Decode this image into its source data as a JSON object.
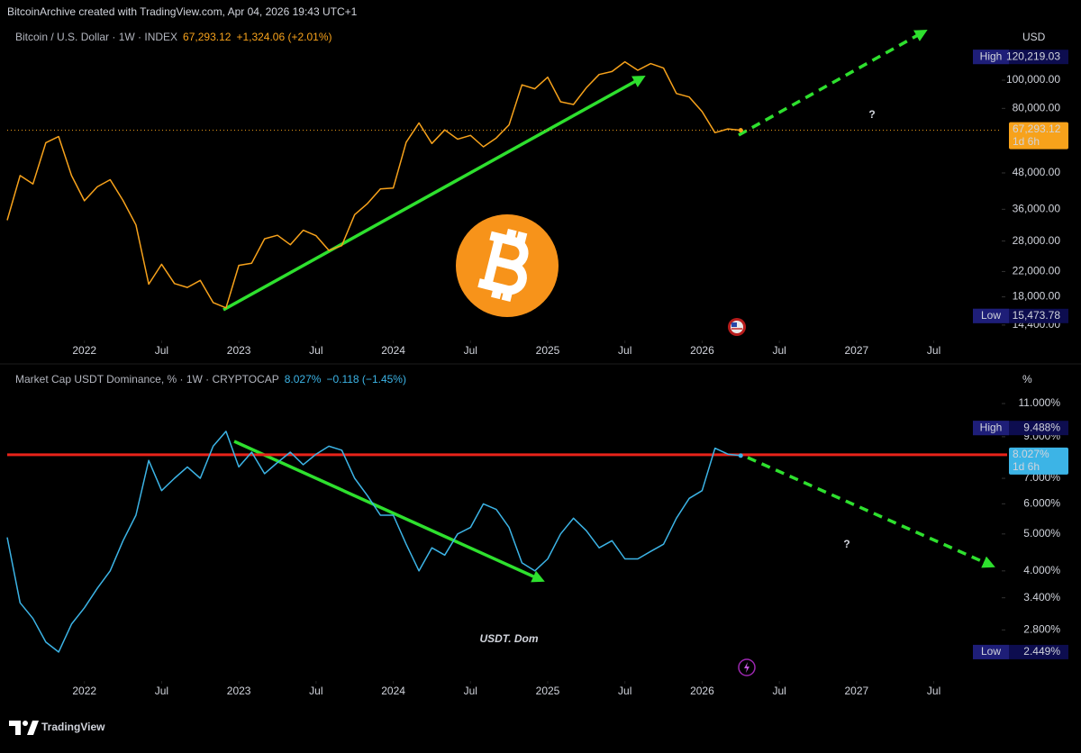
{
  "header": "BitcoinArchive created with TradingView.com, Apr 04, 2026 19:43 UTC+1",
  "brand": "TradingView",
  "chart_data": [
    {
      "type": "line",
      "log_scale": true,
      "unit": "USD",
      "quote": "67,293.12",
      "change": "+1,324.06 (+2.01%)",
      "countdown": "1d 6h",
      "price_line": true,
      "high": {
        "title": "High",
        "value": 120219.03,
        "label": "120,219.03"
      },
      "low": {
        "title": "Low",
        "value": 15473.78,
        "label": "15,473.78"
      },
      "annotations": [
        "?"
      ],
      "x": [
        "2021-07",
        "2021-08",
        "2021-09",
        "2021-10",
        "2021-11",
        "2021-12",
        "2022-01",
        "2022-02",
        "2022-03",
        "2022-04",
        "2022-05",
        "2022-06",
        "2022-07",
        "2022-08",
        "2022-09",
        "2022-10",
        "2022-11",
        "2022-12",
        "2023-01",
        "2023-02",
        "2023-03",
        "2023-04",
        "2023-05",
        "2023-06",
        "2023-07",
        "2023-08",
        "2023-09",
        "2023-10",
        "2023-11",
        "2023-12",
        "2024-01",
        "2024-02",
        "2024-03",
        "2024-04",
        "2024-05",
        "2024-06",
        "2024-07",
        "2024-08",
        "2024-09",
        "2024-10",
        "2024-11",
        "2024-12",
        "2025-01",
        "2025-02",
        "2025-03",
        "2025-04",
        "2025-05",
        "2025-06",
        "2025-07",
        "2025-08",
        "2025-09",
        "2025-10",
        "2025-11",
        "2025-12",
        "2026-01",
        "2026-02",
        "2026-03",
        "2026-04"
      ],
      "series": [
        {
          "name": "Bitcoin / U.S. Dollar · 1W · INDEX",
          "color": "#f7a21b",
          "values": [
            33000,
            47000,
            44000,
            61000,
            64000,
            47000,
            38500,
            43000,
            45500,
            38600,
            31800,
            19900,
            23300,
            20000,
            19400,
            20500,
            17200,
            16500,
            23100,
            23500,
            28500,
            29300,
            27200,
            30500,
            29200,
            26000,
            27000,
            34500,
            37700,
            42300,
            42600,
            61200,
            71300,
            60600,
            67500,
            62700,
            64600,
            59000,
            63300,
            70200,
            96400,
            93400,
            102400,
            84300,
            82500,
            94200,
            104600,
            107100,
            115700,
            108200,
            114000,
            110000,
            90000,
            87500,
            78000,
            66000,
            68000,
            67293.12
          ]
        }
      ],
      "xlim": [
        "2021-07",
        "2027-12"
      ],
      "xticks": [
        {
          "value": "2022-01",
          "label": "2022"
        },
        {
          "value": "2022-07",
          "label": "Jul"
        },
        {
          "value": "2023-01",
          "label": "2023"
        },
        {
          "value": "2023-07",
          "label": "Jul"
        },
        {
          "value": "2024-01",
          "label": "2024"
        },
        {
          "value": "2024-07",
          "label": "Jul"
        },
        {
          "value": "2025-01",
          "label": "2025"
        },
        {
          "value": "2025-07",
          "label": "Jul"
        },
        {
          "value": "2026-01",
          "label": "2026"
        },
        {
          "value": "2026-07",
          "label": "Jul"
        },
        {
          "value": "2027-01",
          "label": "2027"
        },
        {
          "value": "2027-07",
          "label": "Jul"
        }
      ],
      "ylim": [
        12745,
        152300
      ],
      "yticks": [
        {
          "value": 14400,
          "label": "14,400.00"
        },
        {
          "value": 18000,
          "label": "18,000.00"
        },
        {
          "value": 22000,
          "label": "22,000.00"
        },
        {
          "value": 28000,
          "label": "28,000.00"
        },
        {
          "value": 36000,
          "label": "36,000.00"
        },
        {
          "value": 48000,
          "label": "48,000.00"
        },
        {
          "value": 80000,
          "label": "80,000.00"
        },
        {
          "value": 100000,
          "label": "100,000.00"
        }
      ]
    },
    {
      "type": "line",
      "log_scale": true,
      "unit": "%",
      "quote": "8.027%",
      "change": "−0.118 (−1.45%)",
      "countdown": "1d 6h",
      "price_line": false,
      "hline": {
        "value": 8.07,
        "color": "#e8231a"
      },
      "high": {
        "title": "High",
        "value": 9.488,
        "label": "9.488%"
      },
      "low": {
        "title": "Low",
        "value": 2.449,
        "label": "2.449%"
      },
      "annotations": [
        "?",
        "USDT. Dom"
      ],
      "x": [
        "2021-07",
        "2021-08",
        "2021-09",
        "2021-10",
        "2021-11",
        "2021-12",
        "2022-01",
        "2022-02",
        "2022-03",
        "2022-04",
        "2022-05",
        "2022-06",
        "2022-07",
        "2022-08",
        "2022-09",
        "2022-10",
        "2022-11",
        "2022-12",
        "2023-01",
        "2023-02",
        "2023-03",
        "2023-04",
        "2023-05",
        "2023-06",
        "2023-07",
        "2023-08",
        "2023-09",
        "2023-10",
        "2023-11",
        "2023-12",
        "2024-01",
        "2024-02",
        "2024-03",
        "2024-04",
        "2024-05",
        "2024-06",
        "2024-07",
        "2024-08",
        "2024-09",
        "2024-10",
        "2024-11",
        "2024-12",
        "2025-01",
        "2025-02",
        "2025-03",
        "2025-04",
        "2025-05",
        "2025-06",
        "2025-07",
        "2025-08",
        "2025-09",
        "2025-10",
        "2025-11",
        "2025-12",
        "2026-01",
        "2026-02",
        "2026-03",
        "2026-04"
      ],
      "series": [
        {
          "name": "Market Cap USDT Dominance, % · 1W · CRYPTOCAP",
          "color": "#3cb4e6",
          "values": [
            4.9,
            3.3,
            3.0,
            2.6,
            2.449,
            2.9,
            3.2,
            3.6,
            4.0,
            4.8,
            5.6,
            7.8,
            6.5,
            7.0,
            7.5,
            7.0,
            8.5,
            9.3,
            7.5,
            8.2,
            7.2,
            7.7,
            8.2,
            7.6,
            8.1,
            8.5,
            8.3,
            7.0,
            6.3,
            5.6,
            5.6,
            4.7,
            4.0,
            4.6,
            4.4,
            5.0,
            5.2,
            6.0,
            5.8,
            5.2,
            4.2,
            4.0,
            4.3,
            5.0,
            5.5,
            5.1,
            4.6,
            4.8,
            4.3,
            4.3,
            4.5,
            4.7,
            5.5,
            6.2,
            6.5,
            8.4,
            8.1,
            8.027
          ]
        }
      ],
      "xlim": [
        "2021-07",
        "2027-12"
      ],
      "xticks": [
        {
          "value": "2022-01",
          "label": "2022"
        },
        {
          "value": "2022-07",
          "label": "Jul"
        },
        {
          "value": "2023-01",
          "label": "2023"
        },
        {
          "value": "2023-07",
          "label": "Jul"
        },
        {
          "value": "2024-01",
          "label": "2024"
        },
        {
          "value": "2024-07",
          "label": "Jul"
        },
        {
          "value": "2025-01",
          "label": "2025"
        },
        {
          "value": "2025-07",
          "label": "Jul"
        },
        {
          "value": "2026-01",
          "label": "2026"
        },
        {
          "value": "2026-07",
          "label": "Jul"
        },
        {
          "value": "2027-01",
          "label": "2027"
        },
        {
          "value": "2027-07",
          "label": "Jul"
        }
      ],
      "ylim": [
        2.102,
        13.53
      ],
      "yticks": [
        {
          "value": 2.8,
          "label": "2.800%"
        },
        {
          "value": 3.4,
          "label": "3.400%"
        },
        {
          "value": 4,
          "label": "4.000%"
        },
        {
          "value": 5,
          "label": "5.000%"
        },
        {
          "value": 6,
          "label": "6.000%"
        },
        {
          "value": 7,
          "label": "7.000%"
        },
        {
          "value": 9,
          "label": "9.000%"
        },
        {
          "value": 11,
          "label": "11.000%"
        }
      ]
    }
  ]
}
